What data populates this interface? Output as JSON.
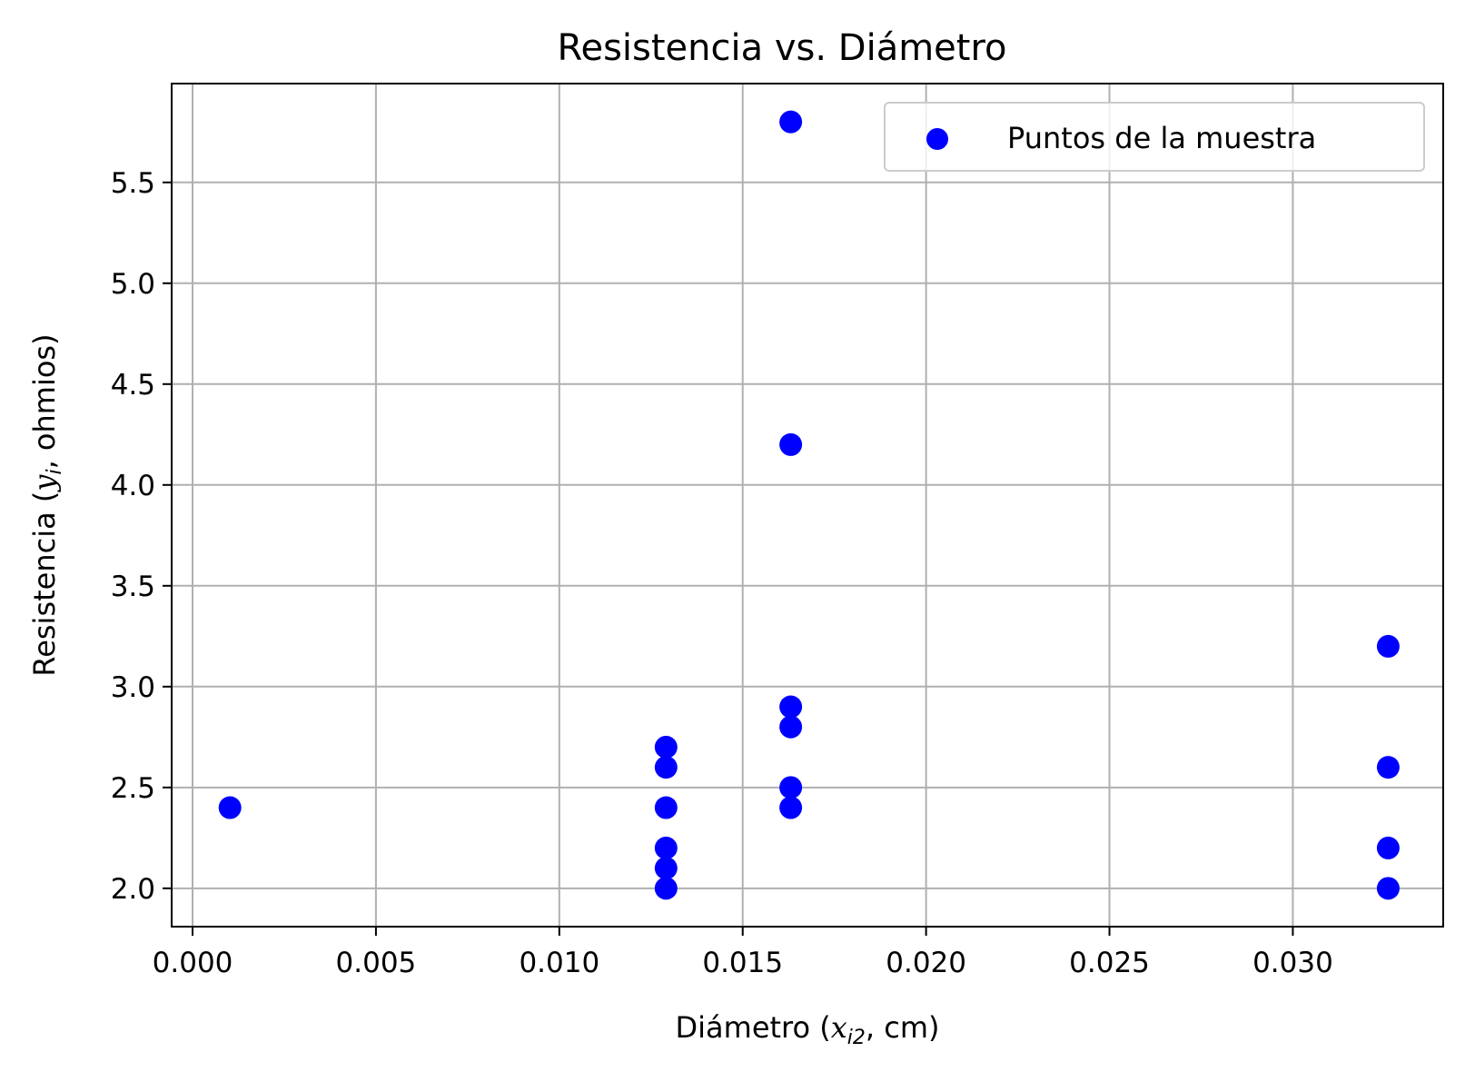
{
  "chart_data": {
    "type": "scatter",
    "title": "Resistencia vs. Diámetro",
    "xlabel": {
      "prefix": "Diámetro (",
      "var": "x",
      "sub": "i2",
      "suffix": ", cm)"
    },
    "ylabel": {
      "prefix": "Resistencia (",
      "var": "y",
      "sub": "i",
      "suffix": ", ohmios)"
    },
    "xlim": [
      -0.00057,
      0.0341
    ],
    "ylim": [
      1.81,
      5.99
    ],
    "xticks": [
      0.0,
      0.005,
      0.01,
      0.015,
      0.02,
      0.025,
      0.03
    ],
    "xtick_labels": [
      "0.000",
      "0.005",
      "0.010",
      "0.015",
      "0.020",
      "0.025",
      "0.030"
    ],
    "yticks": [
      2.0,
      2.5,
      3.0,
      3.5,
      4.0,
      4.5,
      5.0,
      5.5
    ],
    "ytick_labels": [
      "2.0",
      "2.5",
      "3.0",
      "3.5",
      "4.0",
      "4.5",
      "5.0",
      "5.5"
    ],
    "grid": true,
    "legend_position": "top-right",
    "series": [
      {
        "name": "Puntos de la muestra",
        "color": "#0000ff",
        "marker": "circle",
        "points": [
          {
            "x": 0.00102,
            "y": 2.4
          },
          {
            "x": 0.01291,
            "y": 2.7
          },
          {
            "x": 0.01291,
            "y": 2.6
          },
          {
            "x": 0.01291,
            "y": 2.4
          },
          {
            "x": 0.01291,
            "y": 2.2
          },
          {
            "x": 0.01291,
            "y": 2.1
          },
          {
            "x": 0.01291,
            "y": 2.0
          },
          {
            "x": 0.01631,
            "y": 5.8
          },
          {
            "x": 0.01631,
            "y": 4.2
          },
          {
            "x": 0.01631,
            "y": 2.9
          },
          {
            "x": 0.01631,
            "y": 2.8
          },
          {
            "x": 0.01631,
            "y": 2.5
          },
          {
            "x": 0.01631,
            "y": 2.4
          },
          {
            "x": 0.0326,
            "y": 3.2
          },
          {
            "x": 0.0326,
            "y": 2.6
          },
          {
            "x": 0.0326,
            "y": 2.2
          },
          {
            "x": 0.0326,
            "y": 2.0
          }
        ]
      }
    ]
  }
}
